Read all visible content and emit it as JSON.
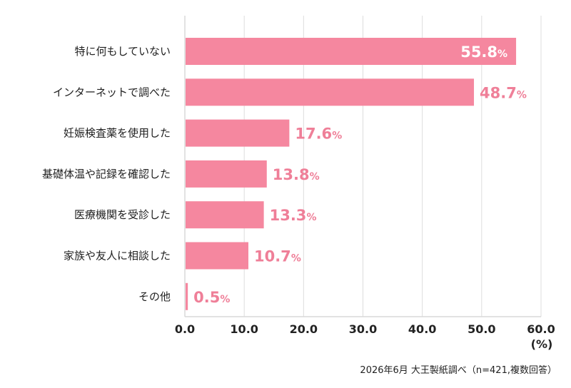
{
  "colors": {
    "bar": "#f5879f",
    "value_label": "#ef7f98",
    "value_label_inside": "#ffffff",
    "grid": "#dddddd",
    "axis": "#d8d8d8"
  },
  "chart_data": {
    "type": "bar",
    "orientation": "horizontal",
    "categories": [
      "特に何もしていない",
      "インターネットで調べた",
      "妊娠検査薬を使用した",
      "基礎体温や記録を確認した",
      "医療機関を受診した",
      "家族や友人に相談した",
      "その他"
    ],
    "values": [
      55.8,
      48.7,
      17.6,
      13.8,
      13.3,
      10.7,
      0.5
    ],
    "value_labels": [
      "55.8",
      "48.7",
      "17.6",
      "13.8",
      "13.3",
      "10.7",
      "0.5"
    ],
    "value_suffix": "%",
    "xlim": [
      0,
      60
    ],
    "xticks": [
      0,
      10,
      20,
      30,
      40,
      50,
      60
    ],
    "xtick_labels": [
      "0.0",
      "10.0",
      "20.0",
      "30.0",
      "40.0",
      "50.0",
      "60.0"
    ],
    "xunit": "(%)",
    "grid": true,
    "note": "2026年6月 大王製紙調べ（n=421,複数回答）"
  }
}
